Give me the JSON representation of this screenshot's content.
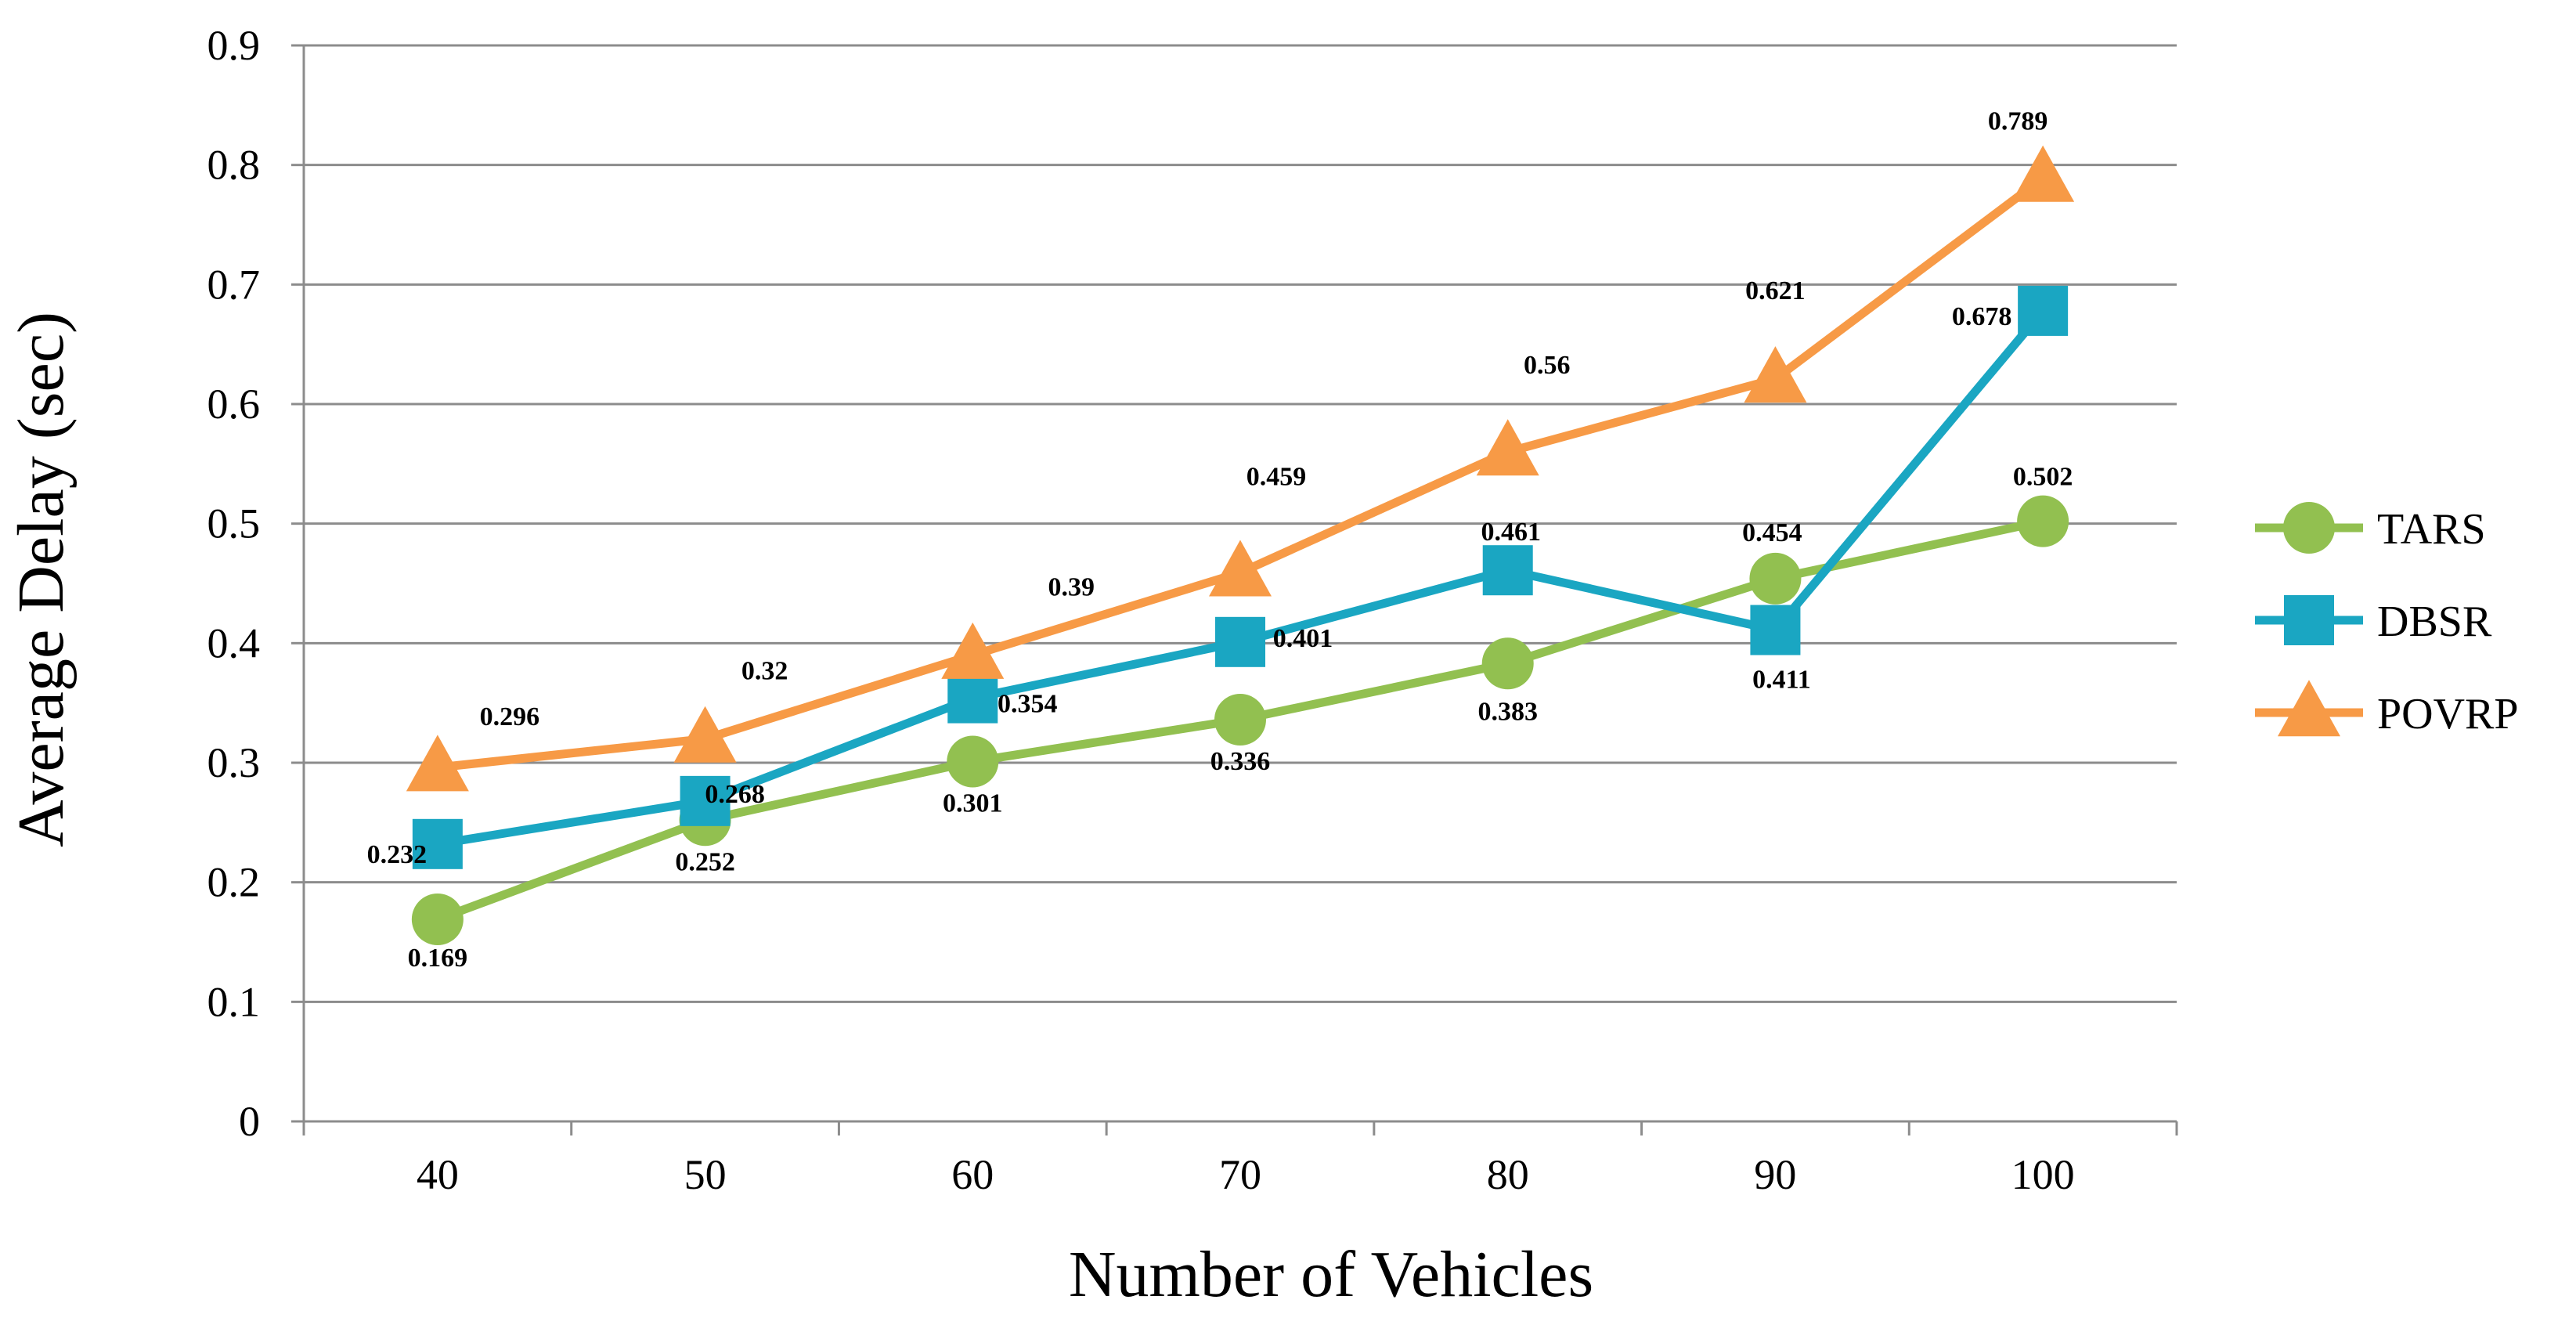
{
  "chart_data": {
    "type": "line",
    "title": "",
    "xlabel": "Number of Vehicles",
    "ylabel": "Average Delay (sec)",
    "categories": [
      "40",
      "50",
      "60",
      "70",
      "80",
      "90",
      "100"
    ],
    "ylim": [
      0,
      0.9
    ],
    "yticks": [
      "0",
      "0.1",
      "0.2",
      "0.3",
      "0.4",
      "0.5",
      "0.6",
      "0.7",
      "0.8",
      "0.9"
    ],
    "grid": true,
    "legend_position": "right",
    "series": [
      {
        "name": "TARS",
        "color": "#92C050",
        "marker": "circle",
        "values": [
          0.169,
          0.252,
          0.301,
          0.336,
          0.383,
          0.454,
          0.502
        ],
        "labels": [
          "0.169",
          "0.252",
          "0.301",
          "0.336",
          "0.383",
          "0.454",
          "0.502"
        ]
      },
      {
        "name": "DBSR",
        "color": "#1AA6C2",
        "marker": "square",
        "values": [
          0.232,
          0.268,
          0.354,
          0.401,
          0.461,
          0.411,
          0.678
        ],
        "labels": [
          "0.232",
          "0.268",
          "0.354",
          "0.401",
          "0.461",
          "0.411",
          "0.678"
        ]
      },
      {
        "name": "POVRP",
        "color": "#F79A46",
        "marker": "triangle",
        "values": [
          0.296,
          0.32,
          0.39,
          0.459,
          0.56,
          0.621,
          0.789
        ],
        "labels": [
          "0.296",
          "0.32",
          "0.39",
          "0.459",
          "0.56",
          "0.621",
          "0.789"
        ]
      }
    ]
  }
}
